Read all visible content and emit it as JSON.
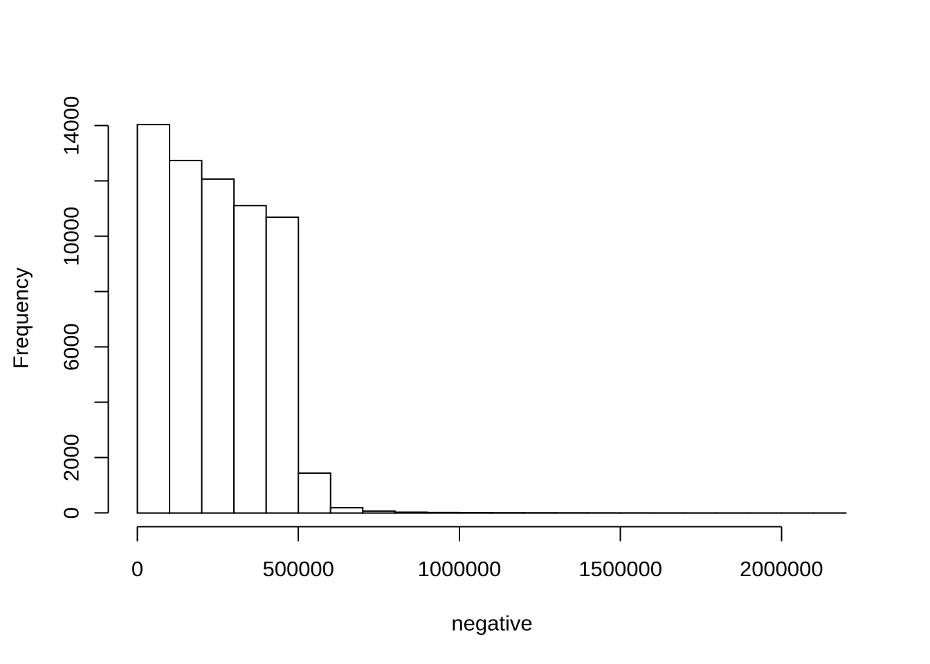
{
  "figure": {
    "background": "#ffffff",
    "foreground": "#000000"
  },
  "chart_data": {
    "type": "bar",
    "variant": "histogram",
    "title": "",
    "xlabel": "negative",
    "ylabel": "Frequency",
    "bar_fill": "#ffffff",
    "bar_stroke": "#000000",
    "axis_color": "#000000",
    "grid": false,
    "legend": false,
    "bin_width": 100000,
    "breaks_start": 0,
    "breaks_end": 2200000,
    "counts": [
      14040,
      12740,
      12070,
      11110,
      10690,
      1440,
      190,
      70,
      30,
      20,
      15,
      12,
      10,
      8,
      6,
      5,
      4,
      3,
      3,
      2,
      2,
      1
    ],
    "xlim": [
      0,
      2200000
    ],
    "ylim": [
      0,
      14000
    ],
    "x_ticks": [
      {
        "value": 0,
        "label": "0"
      },
      {
        "value": 500000,
        "label": "500000"
      },
      {
        "value": 1000000,
        "label": "1000000"
      },
      {
        "value": 1500000,
        "label": "1500000"
      },
      {
        "value": 2000000,
        "label": "2000000"
      }
    ],
    "y_ticks": [
      {
        "value": 0,
        "label": "0"
      },
      {
        "value": 2000,
        "label": "2000"
      },
      {
        "value": 4000,
        "label": ""
      },
      {
        "value": 6000,
        "label": "6000"
      },
      {
        "value": 8000,
        "label": ""
      },
      {
        "value": 10000,
        "label": "10000"
      },
      {
        "value": 12000,
        "label": ""
      },
      {
        "value": 14000,
        "label": "14000"
      }
    ]
  }
}
